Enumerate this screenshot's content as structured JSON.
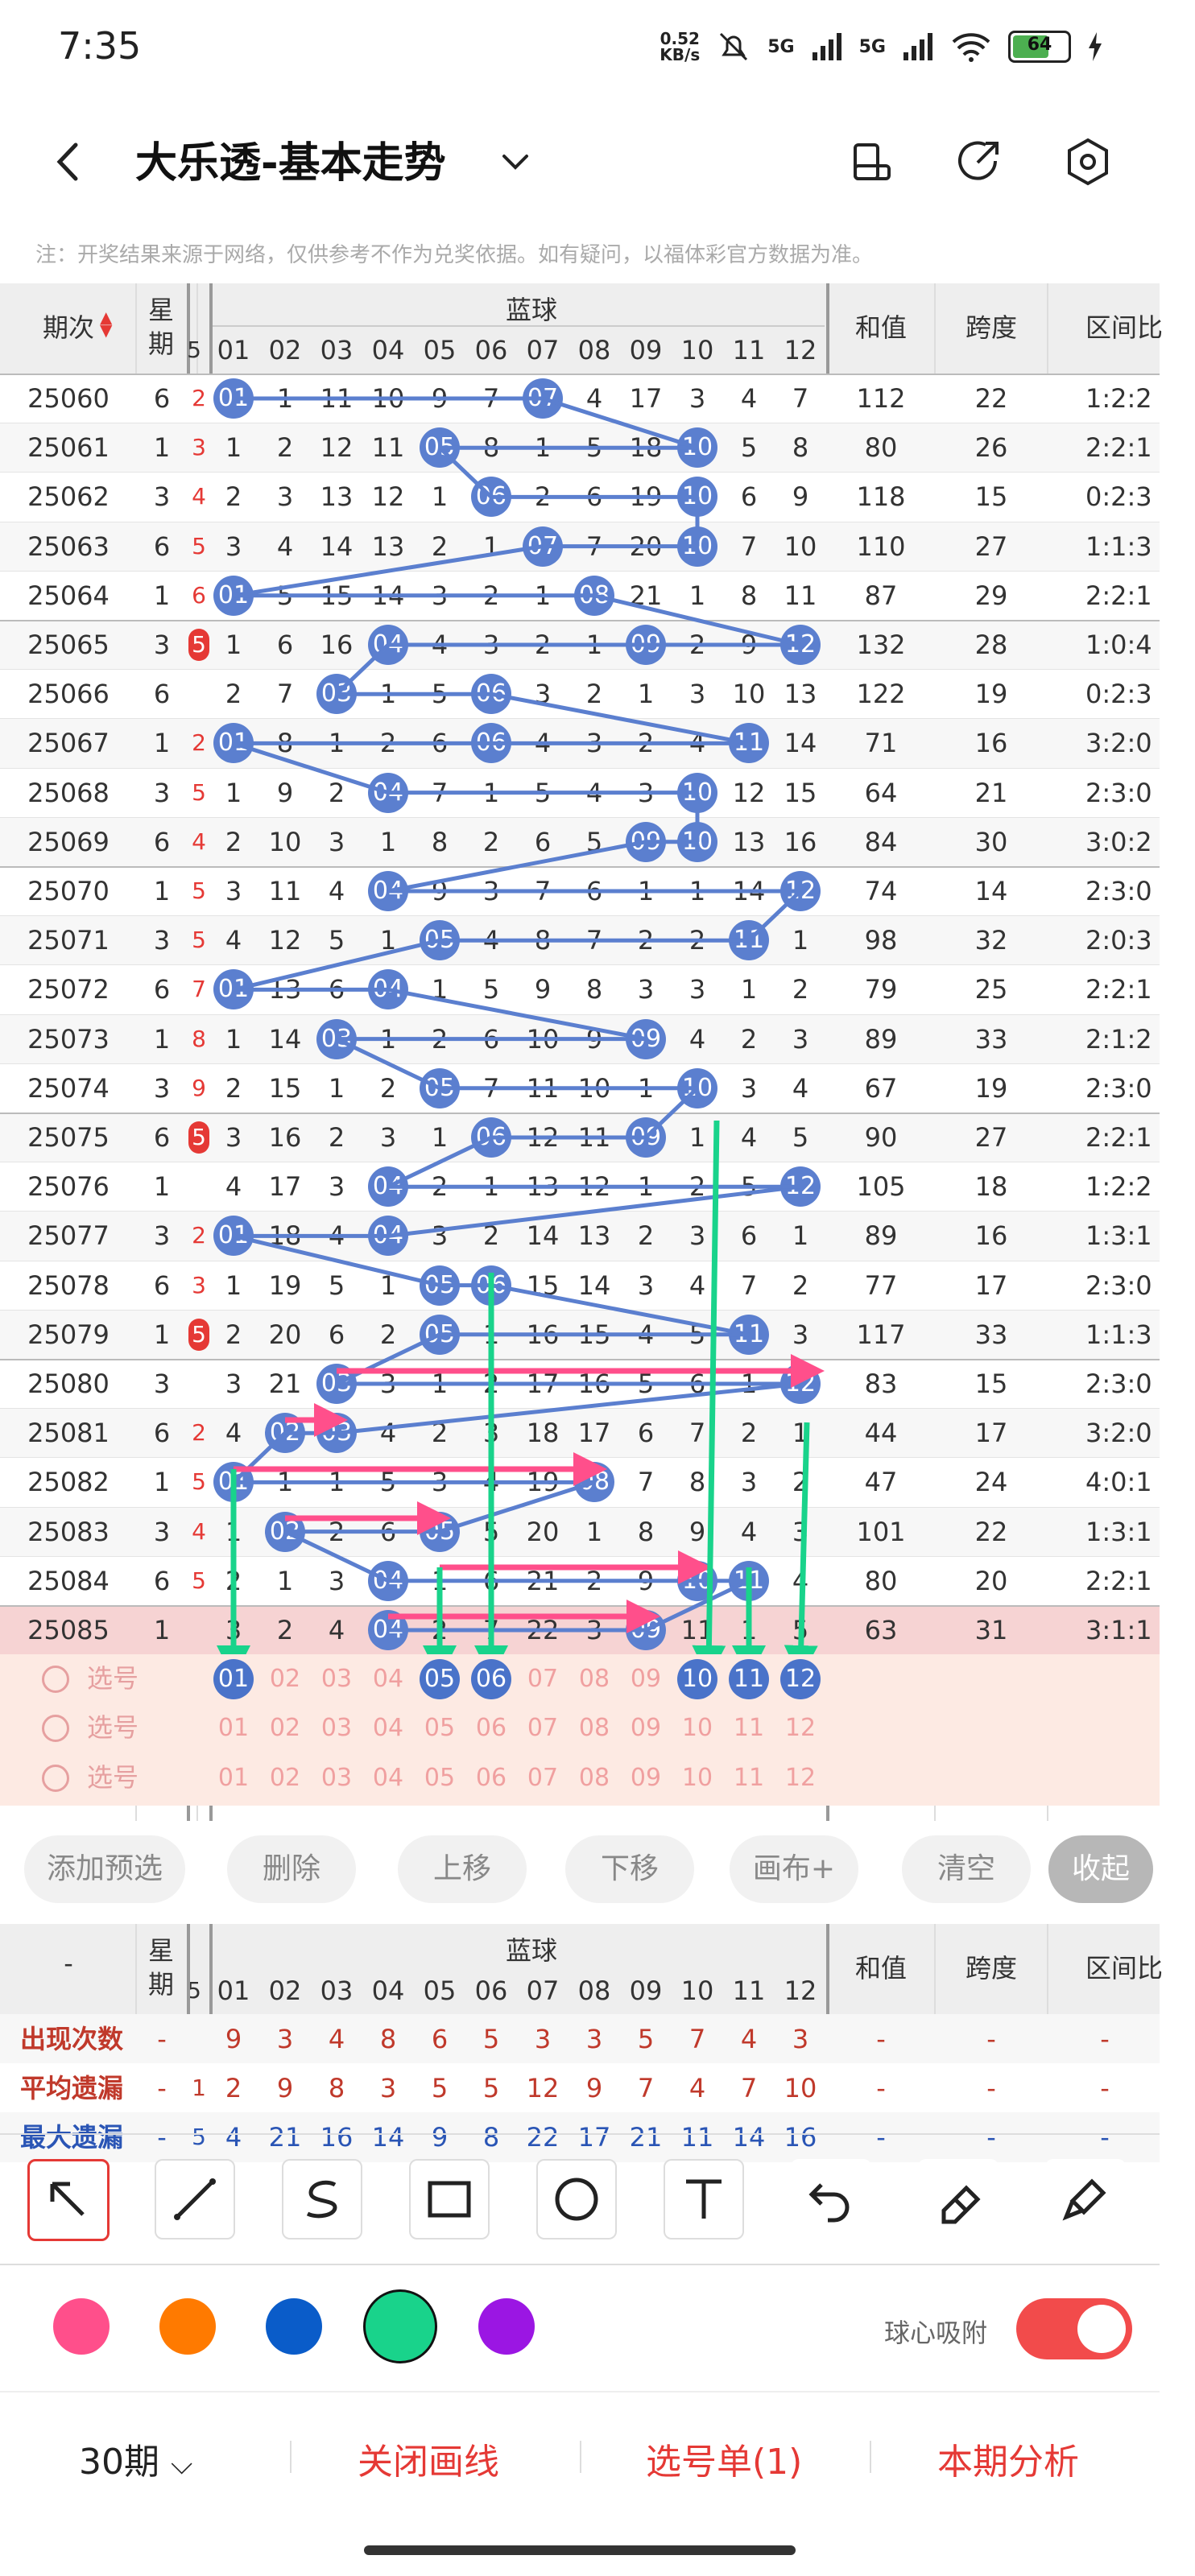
{
  "status_bar": {
    "time": "7:35",
    "net_speed": "0.52\nKB/s",
    "net1": "5G",
    "net2": "5G",
    "battery": "64"
  },
  "header": {
    "title": "大乐透-基本走势"
  },
  "note": "注：开奖结果来源于网络，仅供参考不作为兑奖依据。如有疑问，以福体彩官方数据为准。",
  "table_header": {
    "period": "期次",
    "week": "星期",
    "blue_ball": "蓝球",
    "sum": "和值",
    "span": "跨度",
    "ratio": "区间比",
    "numbers": [
      "01",
      "02",
      "03",
      "04",
      "05",
      "06",
      "07",
      "08",
      "09",
      "10",
      "11",
      "12"
    ],
    "partial_col": "5"
  },
  "rows": [
    {
      "period": "25060",
      "week": "6",
      "pre": "2",
      "cells": [
        "01",
        "1",
        "11",
        "10",
        "9",
        "7",
        "07",
        "4",
        "17",
        "3",
        "4",
        "7"
      ],
      "sum": "112",
      "span": "22",
      "ratio": "1:2:2"
    },
    {
      "period": "25061",
      "week": "1",
      "pre": "3",
      "cells": [
        "1",
        "2",
        "12",
        "11",
        "05",
        "8",
        "1",
        "5",
        "18",
        "10",
        "5",
        "8"
      ],
      "sum": "80",
      "span": "26",
      "ratio": "2:2:1"
    },
    {
      "period": "25062",
      "week": "3",
      "pre": "4",
      "cells": [
        "2",
        "3",
        "13",
        "12",
        "1",
        "06",
        "2",
        "6",
        "19",
        "10",
        "6",
        "9"
      ],
      "sum": "118",
      "span": "15",
      "ratio": "0:2:3"
    },
    {
      "period": "25063",
      "week": "6",
      "pre": "5",
      "cells": [
        "3",
        "4",
        "14",
        "13",
        "2",
        "1",
        "07",
        "7",
        "20",
        "10",
        "7",
        "10"
      ],
      "sum": "110",
      "span": "27",
      "ratio": "1:1:3"
    },
    {
      "period": "25064",
      "week": "1",
      "pre": "6",
      "cells": [
        "01",
        "5",
        "15",
        "14",
        "3",
        "2",
        "1",
        "08",
        "21",
        "1",
        "8",
        "11"
      ],
      "sum": "87",
      "span": "29",
      "ratio": "2:2:1"
    },
    {
      "period": "25065",
      "week": "3",
      "pre": "5",
      "cells": [
        "1",
        "6",
        "16",
        "04",
        "4",
        "3",
        "2",
        "1",
        "09",
        "2",
        "9",
        "12"
      ],
      "sum": "132",
      "span": "28",
      "ratio": "1:0:4"
    },
    {
      "period": "25066",
      "week": "6",
      "pre": "",
      "cells": [
        "2",
        "7",
        "03",
        "1",
        "5",
        "06",
        "3",
        "2",
        "1",
        "3",
        "10",
        "13"
      ],
      "sum": "122",
      "span": "19",
      "ratio": "0:2:3"
    },
    {
      "period": "25067",
      "week": "1",
      "pre": "2",
      "cells": [
        "01",
        "8",
        "1",
        "2",
        "6",
        "06",
        "4",
        "3",
        "2",
        "4",
        "11",
        "14"
      ],
      "sum": "71",
      "span": "16",
      "ratio": "3:2:0"
    },
    {
      "period": "25068",
      "week": "3",
      "pre": "5",
      "cells": [
        "1",
        "9",
        "2",
        "04",
        "7",
        "1",
        "5",
        "4",
        "3",
        "10",
        "12",
        "15"
      ],
      "sum": "64",
      "span": "21",
      "ratio": "2:3:0"
    },
    {
      "period": "25069",
      "week": "6",
      "pre": "4",
      "cells": [
        "2",
        "10",
        "3",
        "1",
        "8",
        "2",
        "6",
        "5",
        "09",
        "10",
        "13",
        "16"
      ],
      "sum": "84",
      "span": "30",
      "ratio": "3:0:2"
    },
    {
      "period": "25070",
      "week": "1",
      "pre": "5",
      "cells": [
        "3",
        "11",
        "4",
        "04",
        "9",
        "3",
        "7",
        "6",
        "1",
        "1",
        "14",
        "12"
      ],
      "sum": "74",
      "span": "14",
      "ratio": "2:3:0"
    },
    {
      "period": "25071",
      "week": "3",
      "pre": "5",
      "cells": [
        "4",
        "12",
        "5",
        "1",
        "05",
        "4",
        "8",
        "7",
        "2",
        "2",
        "11",
        "1"
      ],
      "sum": "98",
      "span": "32",
      "ratio": "2:0:3"
    },
    {
      "period": "25072",
      "week": "6",
      "pre": "7",
      "cells": [
        "01",
        "13",
        "6",
        "04",
        "1",
        "5",
        "9",
        "8",
        "3",
        "3",
        "1",
        "2"
      ],
      "sum": "79",
      "span": "25",
      "ratio": "2:2:1"
    },
    {
      "period": "25073",
      "week": "1",
      "pre": "8",
      "cells": [
        "1",
        "14",
        "03",
        "1",
        "2",
        "6",
        "10",
        "9",
        "09",
        "4",
        "2",
        "3"
      ],
      "sum": "89",
      "span": "33",
      "ratio": "2:1:2"
    },
    {
      "period": "25074",
      "week": "3",
      "pre": "9",
      "cells": [
        "2",
        "15",
        "1",
        "2",
        "05",
        "7",
        "11",
        "10",
        "1",
        "10",
        "3",
        "4"
      ],
      "sum": "67",
      "span": "19",
      "ratio": "2:3:0"
    },
    {
      "period": "25075",
      "week": "6",
      "pre": "5",
      "cells": [
        "3",
        "16",
        "2",
        "3",
        "1",
        "06",
        "12",
        "11",
        "09",
        "1",
        "4",
        "5"
      ],
      "sum": "90",
      "span": "27",
      "ratio": "2:2:1"
    },
    {
      "period": "25076",
      "week": "1",
      "pre": "",
      "cells": [
        "4",
        "17",
        "3",
        "04",
        "2",
        "1",
        "13",
        "12",
        "1",
        "2",
        "5",
        "12"
      ],
      "sum": "105",
      "span": "18",
      "ratio": "1:2:2"
    },
    {
      "period": "25077",
      "week": "3",
      "pre": "2",
      "cells": [
        "01",
        "18",
        "4",
        "04",
        "3",
        "2",
        "14",
        "13",
        "2",
        "3",
        "6",
        "1"
      ],
      "sum": "89",
      "span": "16",
      "ratio": "1:3:1"
    },
    {
      "period": "25078",
      "week": "6",
      "pre": "3",
      "cells": [
        "1",
        "19",
        "5",
        "1",
        "05",
        "06",
        "15",
        "14",
        "3",
        "4",
        "7",
        "2"
      ],
      "sum": "77",
      "span": "17",
      "ratio": "2:3:0"
    },
    {
      "period": "25079",
      "week": "1",
      "pre": "5",
      "cells": [
        "2",
        "20",
        "6",
        "2",
        "05",
        "1",
        "16",
        "15",
        "4",
        "5",
        "11",
        "3"
      ],
      "sum": "117",
      "span": "33",
      "ratio": "1:1:3"
    },
    {
      "period": "25080",
      "week": "3",
      "pre": "",
      "cells": [
        "3",
        "21",
        "03",
        "3",
        "1",
        "2",
        "17",
        "16",
        "5",
        "6",
        "1",
        "12"
      ],
      "sum": "83",
      "span": "15",
      "ratio": "2:3:0"
    },
    {
      "period": "25081",
      "week": "6",
      "pre": "2",
      "cells": [
        "4",
        "02",
        "03",
        "4",
        "2",
        "3",
        "18",
        "17",
        "6",
        "7",
        "2",
        "1"
      ],
      "sum": "44",
      "span": "17",
      "ratio": "3:2:0"
    },
    {
      "period": "25082",
      "week": "1",
      "pre": "5",
      "cells": [
        "01",
        "1",
        "1",
        "5",
        "3",
        "4",
        "19",
        "08",
        "7",
        "8",
        "3",
        "2"
      ],
      "sum": "47",
      "span": "24",
      "ratio": "4:0:1"
    },
    {
      "period": "25083",
      "week": "3",
      "pre": "4",
      "cells": [
        "1",
        "02",
        "2",
        "6",
        "05",
        "5",
        "20",
        "1",
        "8",
        "9",
        "4",
        "3"
      ],
      "sum": "101",
      "span": "22",
      "ratio": "1:3:1"
    },
    {
      "period": "25084",
      "week": "6",
      "pre": "5",
      "cells": [
        "2",
        "1",
        "3",
        "04",
        "1",
        "6",
        "21",
        "2",
        "9",
        "10",
        "11",
        "4"
      ],
      "sum": "80",
      "span": "20",
      "ratio": "2:2:1"
    },
    {
      "period": "25085",
      "week": "1",
      "pre": "",
      "cells": [
        "3",
        "2",
        "4",
        "04",
        "2",
        "7",
        "22",
        "3",
        "09",
        "11",
        "1",
        "5"
      ],
      "sum": "63",
      "span": "31",
      "ratio": "3:1:1"
    }
  ],
  "pick_rows": [
    {
      "label": "选号",
      "selected": [
        "01",
        "05",
        "06",
        "10",
        "11",
        "12"
      ]
    },
    {
      "label": "选号",
      "selected": []
    },
    {
      "label": "选号",
      "selected": []
    }
  ],
  "buttons": [
    "添加预选",
    "删除",
    "上移",
    "下移",
    "画布+",
    "清空",
    "收起"
  ],
  "stats": {
    "rows": [
      {
        "label": "出现次数",
        "week": "-",
        "pre": "",
        "values": [
          "9",
          "3",
          "4",
          "8",
          "6",
          "5",
          "3",
          "3",
          "5",
          "7",
          "4",
          "3"
        ],
        "sum": "-",
        "span": "-",
        "ratio": "-"
      },
      {
        "label": "平均遗漏",
        "week": "-",
        "pre": "1",
        "values": [
          "2",
          "9",
          "8",
          "3",
          "5",
          "5",
          "12",
          "9",
          "7",
          "4",
          "7",
          "10"
        ],
        "sum": "-",
        "span": "-",
        "ratio": "-"
      },
      {
        "label": "最大遗漏",
        "week": "-",
        "pre": "5",
        "values": [
          "4",
          "21",
          "16",
          "14",
          "9",
          "8",
          "22",
          "17",
          "21",
          "11",
          "14",
          "16"
        ],
        "sum": "-",
        "span": "-",
        "ratio": "-"
      }
    ],
    "dash": "-"
  },
  "draw_tools": [
    "arrow-tool",
    "line-tool",
    "curve-tool",
    "rect-tool",
    "circle-tool",
    "text-tool",
    "undo-tool",
    "eraser-tool",
    "clear-tool"
  ],
  "colors": [
    "#ff4f8b",
    "#ff7a00",
    "#0a5cc9",
    "#19d38b",
    "#9b16e3"
  ],
  "snap": {
    "label": "球心吸附",
    "on": true
  },
  "bottom": {
    "periods": "30期",
    "close_lines": "关闭画线",
    "pick_list": "选号单(1)",
    "analysis": "本期分析"
  }
}
